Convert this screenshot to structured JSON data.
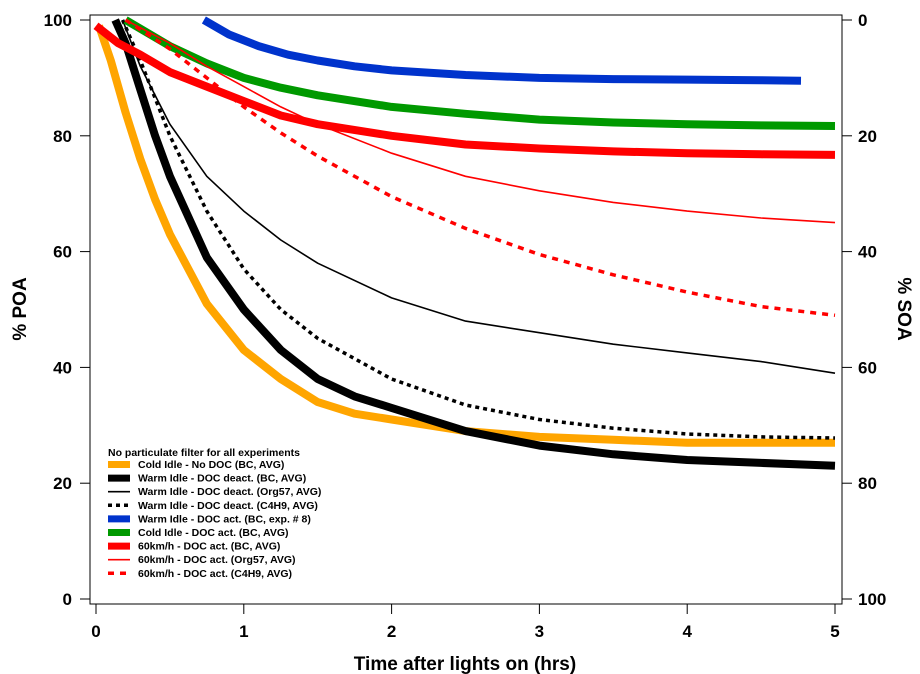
{
  "chart_data": {
    "type": "line",
    "xlabel": "Time after lights on (hrs)",
    "ylabel_left": "% POA",
    "ylabel_right": "% SOA",
    "xlim": [
      0,
      5
    ],
    "ylim_left": [
      0,
      100
    ],
    "ylim_right": [
      100,
      0
    ],
    "x_ticks": [
      "0",
      "1",
      "2",
      "3",
      "4",
      "5"
    ],
    "y_ticks_left": [
      "0",
      "20",
      "40",
      "60",
      "80",
      "100"
    ],
    "y_ticks_right": [
      "100",
      "80",
      "60",
      "40",
      "20",
      "0"
    ],
    "grid": false,
    "legend": {
      "placement": "bottom-left",
      "title": "No particulate filter for all experiments"
    },
    "series": [
      {
        "name": "Cold Idle - No DOC (BC, AVG)",
        "color": "#FFA500",
        "style": "thick-solid",
        "x": [
          0.02,
          0.1,
          0.2,
          0.3,
          0.4,
          0.5,
          0.75,
          1.0,
          1.25,
          1.5,
          1.75,
          2.0,
          2.5,
          3.0,
          3.5,
          4.0,
          4.5,
          5.0
        ],
        "y": [
          99,
          93,
          84,
          76,
          69,
          63,
          51,
          43,
          38,
          34,
          32,
          31,
          29,
          28,
          27.5,
          27,
          27,
          27
        ]
      },
      {
        "name": "Warm Idle - DOC deact. (BC, AVG)",
        "color": "#000000",
        "style": "thick-solid",
        "x": [
          0.13,
          0.2,
          0.3,
          0.4,
          0.5,
          0.75,
          1.0,
          1.25,
          1.5,
          1.75,
          2.0,
          2.5,
          3.0,
          3.5,
          4.0,
          4.5,
          5.0
        ],
        "y": [
          100,
          96,
          88,
          80,
          73,
          59,
          50,
          43,
          38,
          35,
          33,
          29,
          26.5,
          25,
          24,
          23.5,
          23
        ]
      },
      {
        "name": "Warm Idle - DOC deact. (Org57, AVG)",
        "color": "#000000",
        "style": "thin-solid",
        "x": [
          0.18,
          0.3,
          0.5,
          0.75,
          1.0,
          1.25,
          1.5,
          2.0,
          2.5,
          3.0,
          3.5,
          4.0,
          4.5,
          5.0
        ],
        "y": [
          100,
          92,
          82,
          73,
          67,
          62,
          58,
          52,
          48,
          46,
          44,
          42.5,
          41,
          39
        ]
      },
      {
        "name": "Warm Idle - DOC deact. (C4H9, AVG)",
        "color": "#000000",
        "style": "dotted",
        "x": [
          0.18,
          0.3,
          0.5,
          0.75,
          1.0,
          1.25,
          1.5,
          2.0,
          2.5,
          3.0,
          3.5,
          4.0,
          4.5,
          5.0
        ],
        "y": [
          100,
          93,
          80,
          67,
          57,
          50,
          45,
          38,
          33.5,
          31,
          29.5,
          28.5,
          28,
          27.8
        ]
      },
      {
        "name": "Warm Idle - DOC act. (BC, exp. # 8)",
        "color": "#0033CC",
        "style": "thick-solid",
        "x": [
          0.73,
          0.9,
          1.1,
          1.3,
          1.5,
          1.75,
          2.0,
          2.5,
          3.0,
          3.5,
          4.0,
          4.5,
          4.77
        ],
        "y": [
          100,
          97.5,
          95.5,
          94,
          93,
          92,
          91.3,
          90.5,
          90,
          89.8,
          89.7,
          89.6,
          89.5
        ]
      },
      {
        "name": "Cold Idle - DOC act. (BC, AVG)",
        "color": "#009900",
        "style": "thick-solid",
        "x": [
          0.2,
          0.5,
          0.75,
          1.0,
          1.25,
          1.5,
          2.0,
          2.5,
          3.0,
          3.5,
          4.0,
          4.5,
          5.0
        ],
        "y": [
          100,
          95.5,
          92.5,
          90,
          88.3,
          87,
          85,
          83.8,
          82.8,
          82.3,
          82,
          81.8,
          81.7
        ]
      },
      {
        "name": "60km/h - DOC act. (BC, AVG)",
        "color": "#FF0000",
        "style": "thick-solid",
        "x": [
          0.0,
          0.15,
          0.3,
          0.5,
          0.75,
          1.0,
          1.25,
          1.5,
          2.0,
          2.5,
          3.0,
          3.5,
          4.0,
          4.5,
          5.0
        ],
        "y": [
          99,
          96,
          94,
          91,
          88.5,
          86,
          83.5,
          82,
          80,
          78.5,
          77.8,
          77.3,
          77,
          76.8,
          76.7
        ]
      },
      {
        "name": "60km/h - DOC act. (Org57, AVG)",
        "color": "#FF0000",
        "style": "thin-solid",
        "x": [
          0.2,
          0.5,
          0.75,
          1.0,
          1.25,
          1.5,
          2.0,
          2.5,
          3.0,
          3.5,
          4.0,
          4.5,
          5.0
        ],
        "y": [
          100,
          96,
          92,
          88.5,
          85,
          82,
          77,
          73,
          70.5,
          68.5,
          67,
          65.8,
          65
        ]
      },
      {
        "name": "60km/h - DOC act. (C4H9, AVG)",
        "color": "#FF0000",
        "style": "thick-dotted",
        "x": [
          0.2,
          0.5,
          0.75,
          1.0,
          1.25,
          1.5,
          2.0,
          2.5,
          3.0,
          3.5,
          4.0,
          4.5,
          5.0
        ],
        "y": [
          100,
          95,
          90,
          85,
          80.5,
          76.5,
          69.5,
          64,
          59.5,
          56,
          53,
          50.5,
          49
        ]
      }
    ]
  }
}
